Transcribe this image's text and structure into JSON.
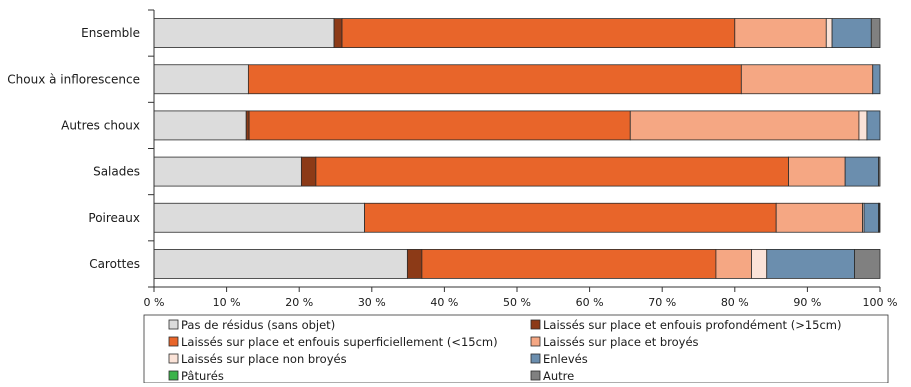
{
  "chart_data": {
    "type": "bar",
    "orientation": "horizontal",
    "stacked": true,
    "categories": [
      "Ensemble",
      "Choux à inflorescence",
      "Autres choux",
      "Salades",
      "Poireaux",
      "Carottes"
    ],
    "series": [
      {
        "name": "Pas de résidus (sans objet)",
        "color": "#dcdcdc",
        "values": [
          24.8,
          13.0,
          12.7,
          20.3,
          29.0,
          34.9
        ]
      },
      {
        "name": "Laissés sur place et enfouis profondément (>15cm)",
        "color": "#8c3a17",
        "values": [
          1.1,
          0.0,
          0.4,
          2.0,
          0.0,
          2.0
        ]
      },
      {
        "name": "Laissés sur place et enfouis superficiellement (<15cm)",
        "color": "#e8652a",
        "values": [
          54.1,
          67.9,
          52.5,
          65.1,
          56.7,
          40.5
        ]
      },
      {
        "name": "Laissés sur place et broyés",
        "color": "#f5a783",
        "values": [
          12.6,
          18.1,
          31.5,
          7.8,
          11.9,
          4.9
        ]
      },
      {
        "name": "Laissés sur place non broyés",
        "color": "#fbe3d8",
        "values": [
          0.8,
          0.0,
          1.1,
          0.0,
          0.2,
          2.1
        ]
      },
      {
        "name": "Enlevés",
        "color": "#6b8eae",
        "values": [
          5.4,
          1.0,
          1.8,
          4.6,
          2.0,
          12.1
        ]
      },
      {
        "name": "Pâturés",
        "color": "#3cb34a",
        "values": [
          0.0,
          0.0,
          0.0,
          0.0,
          0.1,
          0.0
        ]
      },
      {
        "name": "Autre",
        "color": "#808080",
        "values": [
          1.2,
          0.0,
          0.0,
          0.2,
          0.1,
          3.5
        ]
      }
    ],
    "xlim": [
      0,
      100
    ],
    "xticks": [
      "0 %",
      "10 %",
      "20 %",
      "30 %",
      "40 %",
      "50 %",
      "60 %",
      "70 %",
      "80 %",
      "90 %",
      "100 %"
    ],
    "grid": false,
    "legend_position": "bottom"
  }
}
